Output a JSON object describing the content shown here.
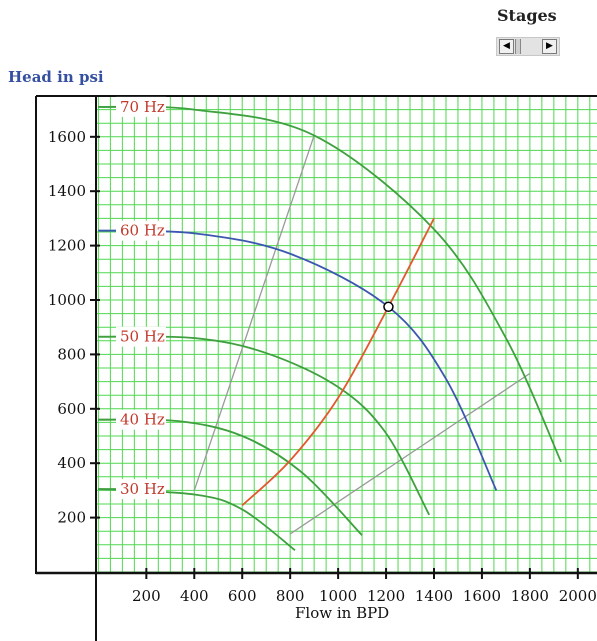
{
  "stages": {
    "label": "Stages"
  },
  "chart_data": {
    "type": "line",
    "ylabel": "Head in psi",
    "xlabel": "Flow in BPD",
    "xlim": [
      -10,
      2080
    ],
    "ylim": [
      0,
      1750
    ],
    "xticks": [
      200,
      400,
      600,
      800,
      1000,
      1200,
      1400,
      1600,
      1800,
      2000
    ],
    "yticks": [
      200,
      400,
      600,
      800,
      1000,
      1200,
      1400,
      1600
    ],
    "grid": true,
    "colors": {
      "grid": "#4fd84f",
      "axis": "#111111",
      "pump_curve": "#3fa03f",
      "selected_curve": "#3c57b0",
      "system_curve": "#e4582e",
      "limit_line": "#9a9a9a",
      "hz_label": "#c0392b",
      "ylabel": "#3550a0"
    },
    "series": [
      {
        "name": "70 Hz",
        "color": "pump_curve",
        "x": [
          0,
          400,
          900,
          1400,
          1700,
          1930
        ],
        "y": [
          1710,
          1700,
          1605,
          1260,
          860,
          405
        ]
      },
      {
        "name": "60 Hz",
        "color": "selected_curve",
        "x": [
          0,
          400,
          800,
          1210,
          1450,
          1660
        ],
        "y": [
          1255,
          1245,
          1170,
          975,
          710,
          300
        ]
      },
      {
        "name": "50 Hz",
        "color": "pump_curve",
        "x": [
          0,
          400,
          700,
          1000,
          1200,
          1380
        ],
        "y": [
          865,
          860,
          805,
          680,
          510,
          210
        ]
      },
      {
        "name": "40 Hz",
        "color": "pump_curve",
        "x": [
          0,
          330,
          600,
          850,
          1100
        ],
        "y": [
          560,
          555,
          500,
          365,
          135
        ]
      },
      {
        "name": "30 Hz",
        "color": "pump_curve",
        "x": [
          0,
          400,
          600,
          820
        ],
        "y": [
          305,
          285,
          230,
          80
        ]
      }
    ],
    "system_curve": {
      "color": "system_curve",
      "x": [
        600,
        800,
        1000,
        1210,
        1400
      ],
      "y": [
        245,
        410,
        640,
        975,
        1300
      ]
    },
    "limit_lines": [
      {
        "color": "limit_line",
        "x": [
          400,
          900
        ],
        "y": [
          300,
          1605
        ]
      },
      {
        "color": "limit_line",
        "x": [
          800,
          1800
        ],
        "y": [
          140,
          730
        ]
      }
    ],
    "operating_point": {
      "x": 1210,
      "y": 975
    }
  }
}
